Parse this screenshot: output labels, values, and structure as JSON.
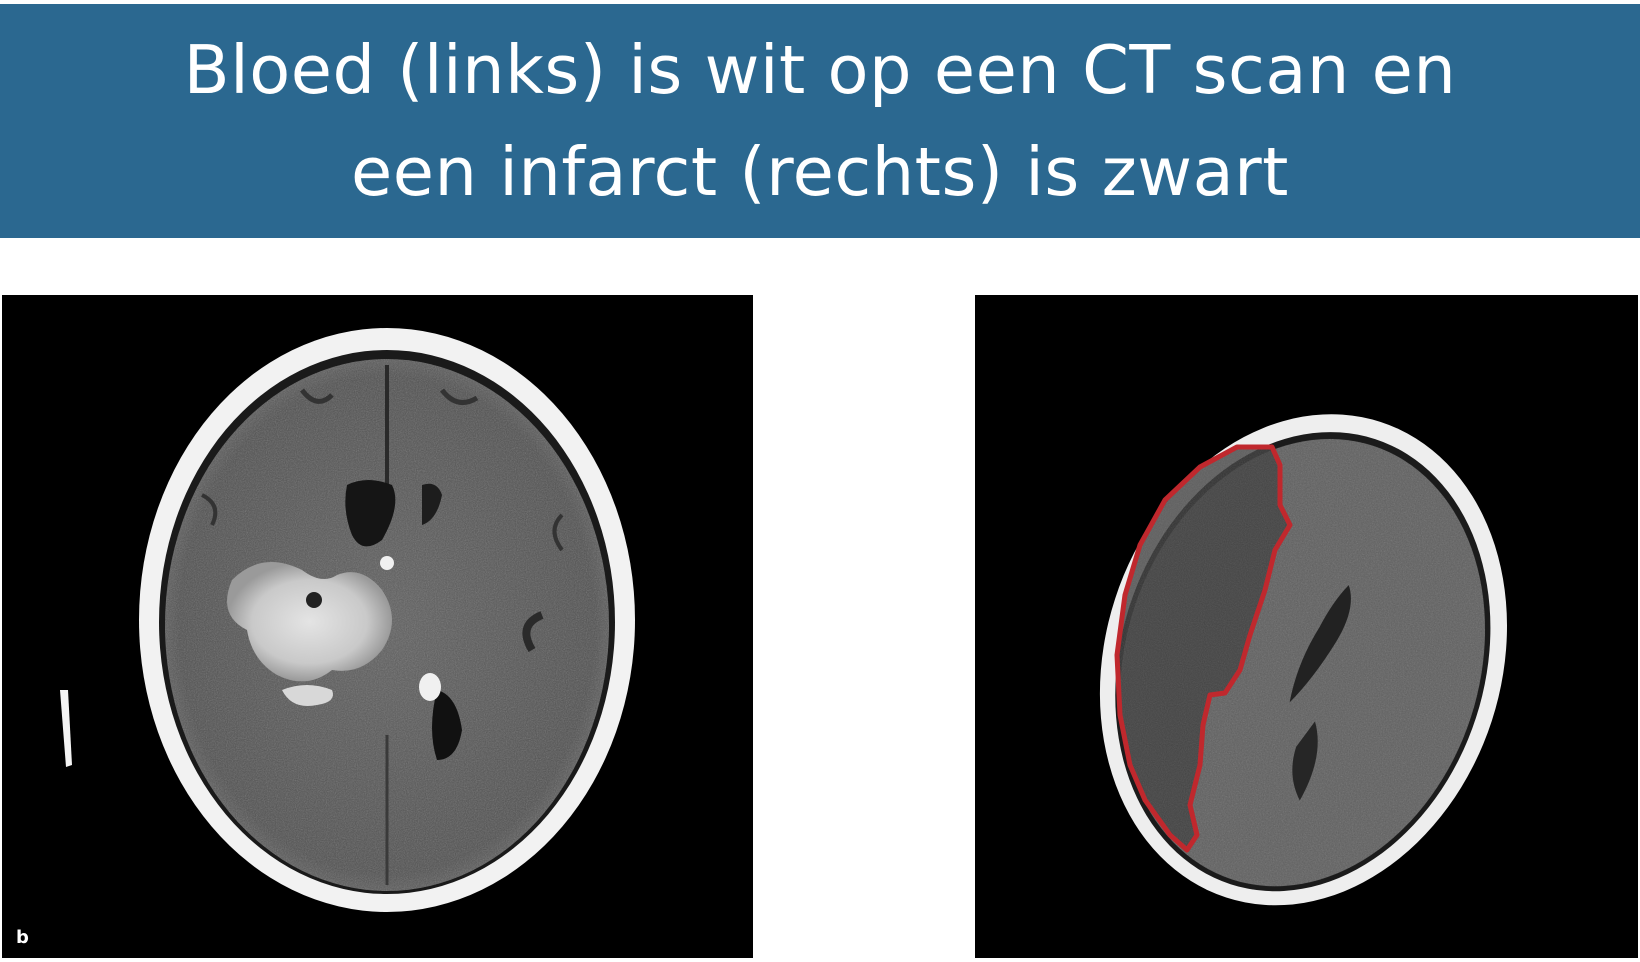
{
  "title": {
    "line1": "Bloed (links) is wit op een CT scan en",
    "line2": "een infarct (rechts) is zwart"
  },
  "colors": {
    "banner": "#2b6890",
    "title_text": "#ffffff",
    "scan_background": "#000000",
    "infarct_outline": "#c0282d"
  },
  "images": {
    "left": {
      "label": "b"
    },
    "right": {}
  }
}
